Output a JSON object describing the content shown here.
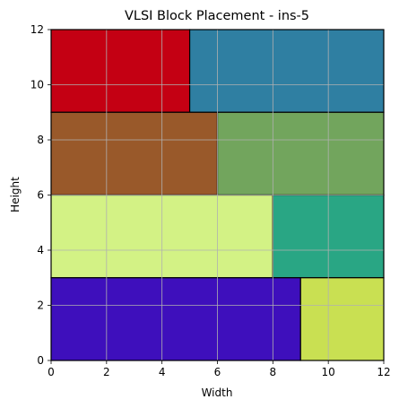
{
  "chart_data": {
    "type": "rectangles",
    "title": "VLSI Block Placement - ins-5",
    "xlabel": "Width",
    "ylabel": "Height",
    "xlim": [
      0,
      12
    ],
    "ylim": [
      0,
      12
    ],
    "xticks": [
      "0",
      "2",
      "4",
      "6",
      "8",
      "10",
      "12"
    ],
    "yticks": [
      "0",
      "2",
      "4",
      "6",
      "8",
      "10",
      "12"
    ],
    "grid": true,
    "blocks": [
      {
        "x": 0,
        "y": 9,
        "w": 5,
        "h": 3,
        "color": "#c40013"
      },
      {
        "x": 5,
        "y": 9,
        "w": 7,
        "h": 3,
        "color": "#2f7fa2"
      },
      {
        "x": 0,
        "y": 6,
        "w": 6,
        "h": 3,
        "color": "#99592a"
      },
      {
        "x": 6,
        "y": 6,
        "w": 6,
        "h": 3,
        "color": "#72a55d"
      },
      {
        "x": 0,
        "y": 3,
        "w": 8,
        "h": 3,
        "color": "#d3f285"
      },
      {
        "x": 8,
        "y": 3,
        "w": 4,
        "h": 3,
        "color": "#29a684"
      },
      {
        "x": 0,
        "y": 0,
        "w": 9,
        "h": 3,
        "color": "#3e0fbc"
      },
      {
        "x": 9,
        "y": 0,
        "w": 3,
        "h": 3,
        "color": "#c9e052"
      }
    ]
  }
}
